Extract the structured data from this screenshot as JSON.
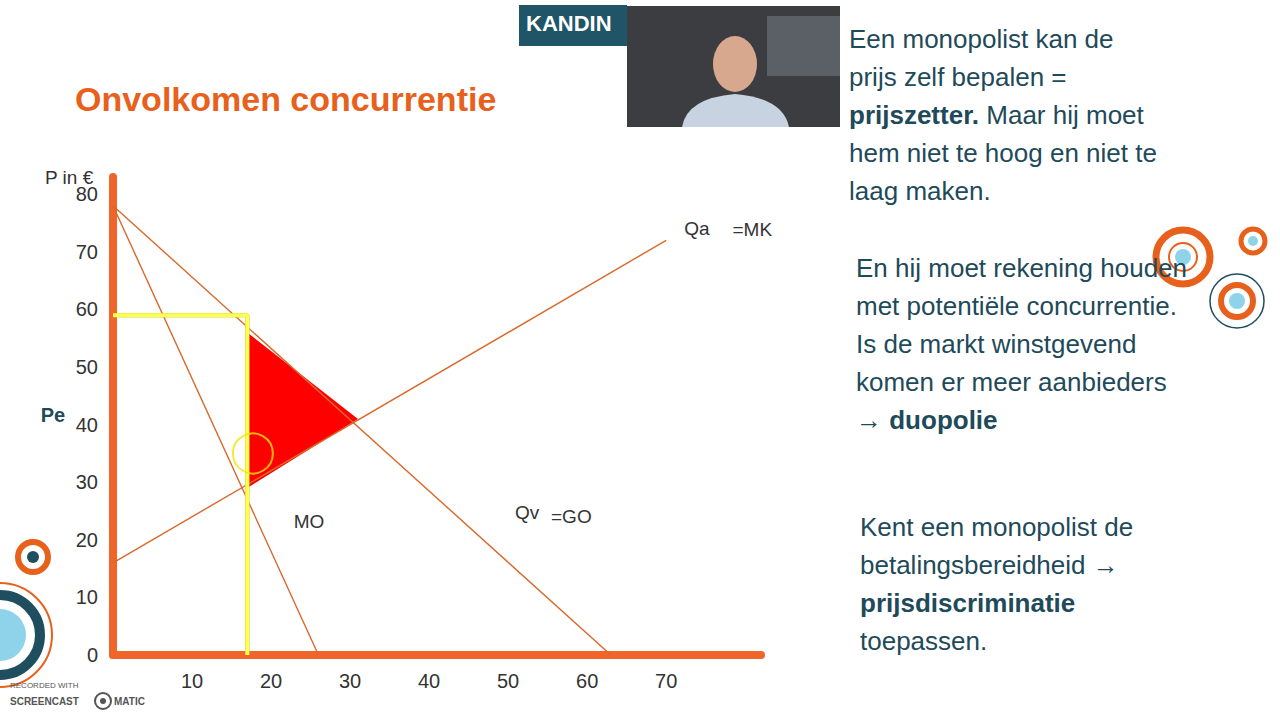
{
  "slide": {
    "title": "Onvolkomen concurrentie",
    "logo": "KANDIN",
    "paragraphs": [
      [
        {
          "text": "Een monopolist kan de prijs zelf bepalen = "
        },
        {
          "text": "prijszetter.",
          "bold": true
        },
        {
          "text": " Maar hij moet hem niet te hoog en niet te laag maken."
        }
      ],
      [
        {
          "text": "En hij moet rekening houden met potentiële concurrentie. Is de markt winstgevend komen er meer aanbieders → "
        },
        {
          "text": "duopolie",
          "bold": true
        }
      ],
      [
        {
          "text": "Kent een monopolist de betalingsbereidheid → "
        },
        {
          "text": "prijsdiscriminatie",
          "bold": true
        },
        {
          "text": " toepassen."
        }
      ]
    ],
    "watermark": [
      "RECORDED WITH",
      "SCREENCAST",
      "MATIC"
    ]
  },
  "chart_data": {
    "type": "line",
    "y_label": "P in €",
    "xlim": [
      0,
      82
    ],
    "xticks": [
      10,
      20,
      30,
      40,
      50,
      60,
      70
    ],
    "ylim": [
      0,
      83
    ],
    "yticks": [
      0,
      10,
      20,
      30,
      40,
      50,
      60,
      70,
      80
    ],
    "grid": false,
    "series": [
      {
        "type": "polygon",
        "color": "#ff0000",
        "x": [
          17,
          31,
          17
        ],
        "values": [
          56,
          41,
          29
        ]
      },
      {
        "type": "line",
        "color": "#d9682b",
        "line_style": "solid",
        "x": [
          0,
          63
        ],
        "values": [
          78,
          0
        ]
      },
      {
        "type": "line",
        "color": "#d9682b",
        "line_style": "solid",
        "x": [
          0,
          26
        ],
        "values": [
          78,
          0
        ]
      },
      {
        "type": "line",
        "color": "#d9682b",
        "line_style": "solid",
        "x": [
          0,
          70
        ],
        "values": [
          16,
          72
        ]
      },
      {
        "type": "line",
        "color": "#ffff4d",
        "line_style": "bold",
        "x": [
          0,
          17,
          17
        ],
        "values": [
          59,
          59,
          0
        ]
      },
      {
        "type": "scatter",
        "color": "#f2e30b",
        "marker": "circle_open",
        "x": [
          17.7
        ],
        "values": [
          35
        ]
      }
    ],
    "annotations": [
      {
        "text": "Qa",
        "x": 73.9,
        "y": 74.1
      },
      {
        "text": "=MK",
        "x": 80.9,
        "y": 73.8
      },
      {
        "text": "MO",
        "x": 24.8,
        "y": 23.1
      },
      {
        "text": "Qv",
        "x": 52.4,
        "y": 24.8
      },
      {
        "text": "=GO",
        "x": 58,
        "y": 24
      },
      {
        "text": "Pe",
        "x": -7.6,
        "y": 41.7,
        "bold": true
      }
    ]
  }
}
